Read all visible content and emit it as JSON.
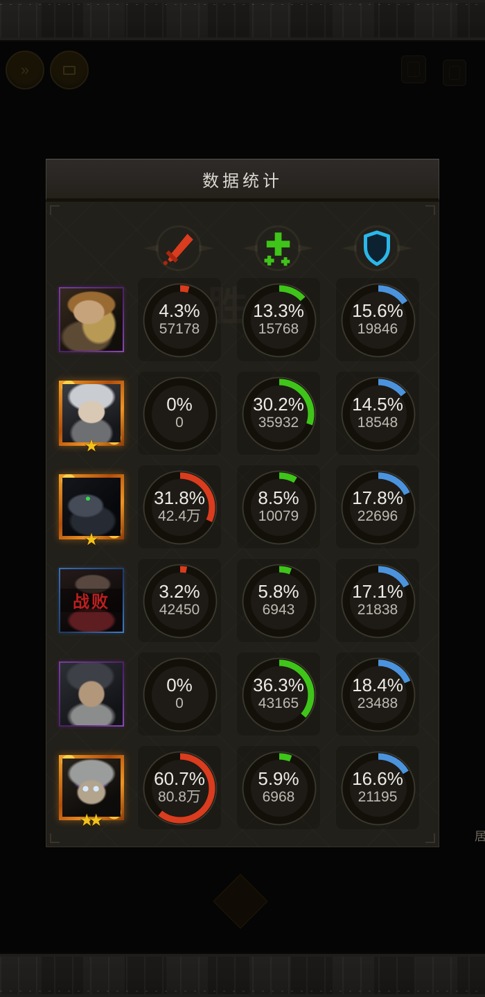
{
  "panel": {
    "title": "数据统计"
  },
  "page": {
    "watermark": "胜",
    "edge_text": "居"
  },
  "hud": {
    "left_icons": [
      "fast-forward-icon",
      "banner-menu-icon"
    ],
    "right_icons": [
      "hud-slot-icon-1",
      "hud-slot-icon-2"
    ],
    "fast_forward_glyph": "»"
  },
  "columns": [
    {
      "id": "damage",
      "icon": "sword-icon",
      "color": "#d93c1e"
    },
    {
      "id": "healing",
      "icon": "heal-cross-icon",
      "color": "#3fc41a"
    },
    {
      "id": "blocked",
      "icon": "shield-icon",
      "color": "#4b93dd"
    }
  ],
  "rows": [
    {
      "portrait": "blonde-woman",
      "border": "purple",
      "stars": 0,
      "stats": [
        {
          "pct": "4.3%",
          "pct_num": 4.3,
          "value": "57178"
        },
        {
          "pct": "13.3%",
          "pct_num": 13.3,
          "value": "15768"
        },
        {
          "pct": "15.6%",
          "pct_num": 15.6,
          "value": "19846"
        }
      ]
    },
    {
      "portrait": "silver-knight",
      "border": "orange",
      "stars": 1,
      "stats": [
        {
          "pct": "0%",
          "pct_num": 0,
          "value": "0"
        },
        {
          "pct": "30.2%",
          "pct_num": 30.2,
          "value": "35932"
        },
        {
          "pct": "14.5%",
          "pct_num": 14.5,
          "value": "18548"
        }
      ]
    },
    {
      "portrait": "raven-beast",
      "border": "orange",
      "stars": 1,
      "stats": [
        {
          "pct": "31.8%",
          "pct_num": 31.8,
          "value": "42.4万"
        },
        {
          "pct": "8.5%",
          "pct_num": 8.5,
          "value": "10079"
        },
        {
          "pct": "17.8%",
          "pct_num": 17.8,
          "value": "22696"
        }
      ]
    },
    {
      "portrait": "defeated-figure",
      "border": "blue",
      "stars": 0,
      "defeated_label": "战败",
      "stats": [
        {
          "pct": "3.2%",
          "pct_num": 3.2,
          "value": "42450"
        },
        {
          "pct": "5.8%",
          "pct_num": 5.8,
          "value": "6943"
        },
        {
          "pct": "17.1%",
          "pct_num": 17.1,
          "value": "21838"
        }
      ]
    },
    {
      "portrait": "dark-haired-man",
      "border": "purple",
      "stars": 0,
      "stats": [
        {
          "pct": "0%",
          "pct_num": 0,
          "value": "0"
        },
        {
          "pct": "36.3%",
          "pct_num": 36.3,
          "value": "43165"
        },
        {
          "pct": "18.4%",
          "pct_num": 18.4,
          "value": "23488"
        }
      ]
    },
    {
      "portrait": "glowing-youth",
      "border": "orange",
      "stars": 2,
      "stats": [
        {
          "pct": "60.7%",
          "pct_num": 60.7,
          "value": "80.8万"
        },
        {
          "pct": "5.9%",
          "pct_num": 5.9,
          "value": "6968"
        },
        {
          "pct": "16.6%",
          "pct_num": 16.6,
          "value": "21195"
        }
      ]
    }
  ]
}
